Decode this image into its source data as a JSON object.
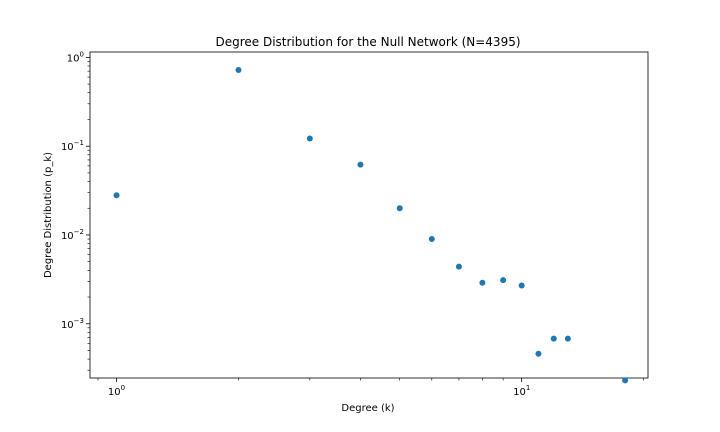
{
  "chart_data": {
    "type": "scatter",
    "title": "Degree Distribution for the Null Network (N=4395)",
    "xlabel": "Degree (k)",
    "ylabel": "Degree Distribution (p_k)",
    "xscale": "log",
    "yscale": "log",
    "xlim": [
      0.86,
      20.5
    ],
    "ylim": [
      0.000245,
      1.15
    ],
    "grid": false,
    "marker_color": "#1f77b4",
    "x_ticks": [
      {
        "value": 1,
        "base": "10",
        "exp": "0"
      },
      {
        "value": 10,
        "base": "10",
        "exp": "1"
      }
    ],
    "y_ticks": [
      {
        "value": 1,
        "base": "10",
        "exp": "0"
      },
      {
        "value": 0.1,
        "base": "10",
        "exp": "−1"
      },
      {
        "value": 0.01,
        "base": "10",
        "exp": "−2"
      },
      {
        "value": 0.001,
        "base": "10",
        "exp": "−3"
      }
    ],
    "x": [
      1,
      2,
      3,
      4,
      5,
      6,
      7,
      8,
      9,
      10,
      11,
      12,
      13,
      18
    ],
    "y": [
      0.028,
      0.72,
      0.122,
      0.062,
      0.02,
      0.009,
      0.0044,
      0.0029,
      0.0031,
      0.0027,
      0.00046,
      0.00068,
      0.00068,
      0.00023
    ]
  }
}
